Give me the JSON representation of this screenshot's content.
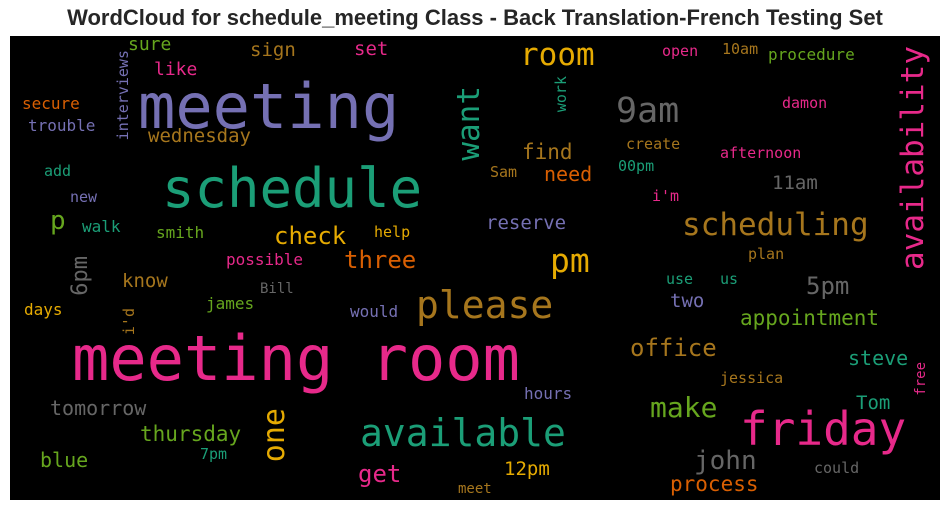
{
  "chart_data": {
    "type": "wordcloud",
    "title": "WordCloud for schedule_meeting Class - Back Translation-French Testing Set",
    "background": "#000000",
    "words": [
      {
        "text": "meeting room",
        "color": "#e7298a"
      },
      {
        "text": "meeting",
        "color": "#7570b3"
      },
      {
        "text": "schedule",
        "color": "#1b9e77"
      },
      {
        "text": "friday",
        "color": "#e7298a"
      },
      {
        "text": "available",
        "color": "#1b9e77"
      },
      {
        "text": "please",
        "color": "#a6761d"
      },
      {
        "text": "scheduling",
        "color": "#a6761d"
      },
      {
        "text": "availability",
        "color": "#e7298a"
      },
      {
        "text": "room",
        "color": "#e6ab02"
      },
      {
        "text": "9am",
        "color": "#666666"
      },
      {
        "text": "pm",
        "color": "#e6ab02"
      },
      {
        "text": "want",
        "color": "#1b9e77"
      },
      {
        "text": "make",
        "color": "#66a61e"
      },
      {
        "text": "office",
        "color": "#a6761d"
      },
      {
        "text": "one",
        "color": "#e6ab02"
      },
      {
        "text": "john",
        "color": "#666666"
      },
      {
        "text": "check",
        "color": "#e6ab02"
      },
      {
        "text": "three",
        "color": "#d95f02"
      },
      {
        "text": "5pm",
        "color": "#666666"
      },
      {
        "text": "get",
        "color": "#e7298a"
      },
      {
        "text": "appointment",
        "color": "#66a61e"
      },
      {
        "text": "find",
        "color": "#a6761d"
      },
      {
        "text": "need",
        "color": "#d95f02"
      },
      {
        "text": "process",
        "color": "#d95f02"
      },
      {
        "text": "thursday",
        "color": "#66a61e"
      },
      {
        "text": "tomorrow",
        "color": "#666666"
      },
      {
        "text": "steve",
        "color": "#1b9e77"
      },
      {
        "text": "wednesday",
        "color": "#a6761d"
      },
      {
        "text": "reserve",
        "color": "#7570b3"
      },
      {
        "text": "two",
        "color": "#7570b3"
      },
      {
        "text": "11am",
        "color": "#666666"
      },
      {
        "text": "12pm",
        "color": "#e6ab02"
      },
      {
        "text": "6pm",
        "color": "#666666"
      },
      {
        "text": "Tom",
        "color": "#1b9e77"
      },
      {
        "text": "p",
        "color": "#66a61e"
      },
      {
        "text": "know",
        "color": "#a6761d"
      },
      {
        "text": "blue",
        "color": "#66a61e"
      },
      {
        "text": "sure",
        "color": "#66a61e"
      },
      {
        "text": "like",
        "color": "#e7298a"
      },
      {
        "text": "sign",
        "color": "#a6761d"
      },
      {
        "text": "set",
        "color": "#e7298a"
      },
      {
        "text": "secure",
        "color": "#d95f02"
      },
      {
        "text": "trouble",
        "color": "#7570b3"
      },
      {
        "text": "interviews",
        "color": "#7570b3"
      },
      {
        "text": "work",
        "color": "#1b9e77"
      },
      {
        "text": "add",
        "color": "#1b9e77"
      },
      {
        "text": "new",
        "color": "#7570b3"
      },
      {
        "text": "walk",
        "color": "#1b9e77"
      },
      {
        "text": "smith",
        "color": "#66a61e"
      },
      {
        "text": "help",
        "color": "#e6ab02"
      },
      {
        "text": "possible",
        "color": "#e7298a"
      },
      {
        "text": "Bill",
        "color": "#666666"
      },
      {
        "text": "james",
        "color": "#66a61e"
      },
      {
        "text": "i'd",
        "color": "#a6761d"
      },
      {
        "text": "days",
        "color": "#e6ab02"
      },
      {
        "text": "would",
        "color": "#7570b3"
      },
      {
        "text": "Sam",
        "color": "#a6761d"
      },
      {
        "text": "open",
        "color": "#e7298a"
      },
      {
        "text": "10am",
        "color": "#a6761d"
      },
      {
        "text": "procedure",
        "color": "#66a61e"
      },
      {
        "text": "damon",
        "color": "#e7298a"
      },
      {
        "text": "create",
        "color": "#a6761d"
      },
      {
        "text": "00pm",
        "color": "#1b9e77"
      },
      {
        "text": "afternoon",
        "color": "#e7298a"
      },
      {
        "text": "i'm",
        "color": "#e7298a"
      },
      {
        "text": "plan",
        "color": "#a6761d"
      },
      {
        "text": "use",
        "color": "#1b9e77"
      },
      {
        "text": "us",
        "color": "#1b9e77"
      },
      {
        "text": "jessica",
        "color": "#a6761d"
      },
      {
        "text": "free",
        "color": "#e7298a"
      },
      {
        "text": "hours",
        "color": "#7570b3"
      },
      {
        "text": "7pm",
        "color": "#1b9e77"
      },
      {
        "text": "meet",
        "color": "#a6761d"
      },
      {
        "text": "could",
        "color": "#666666"
      }
    ]
  }
}
